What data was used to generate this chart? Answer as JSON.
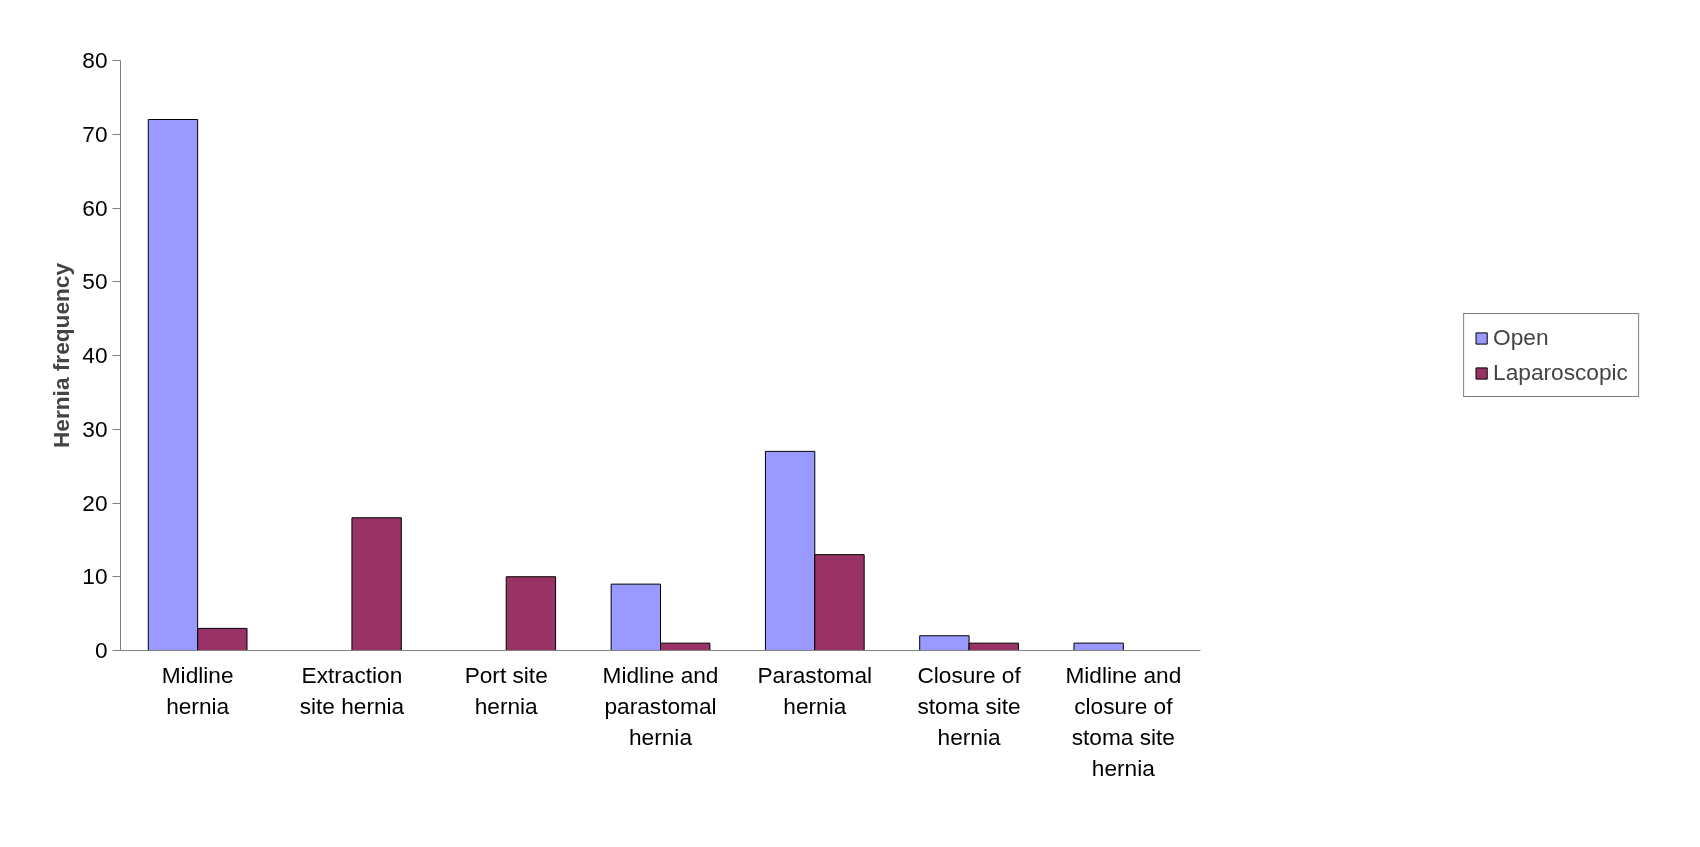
{
  "chart_data": {
    "type": "bar",
    "ylabel": "Hernia frequency",
    "categories": [
      "Midline hernia",
      "Extraction site hernia",
      "Port site hernia",
      "Midline and parastomal hernia",
      "Parastomal hernia",
      "Closure of stoma site hernia",
      "Midline and closure of stoma site hernia"
    ],
    "series": [
      {
        "name": "Open",
        "color": "#9999ff",
        "values": [
          72,
          0,
          0,
          9,
          27,
          2,
          1
        ]
      },
      {
        "name": "Laparoscopic",
        "color": "#993366",
        "values": [
          3,
          18,
          10,
          1,
          13,
          1,
          0
        ]
      }
    ],
    "ylim": [
      0,
      80
    ],
    "yticks": [
      0,
      10,
      20,
      30,
      40,
      50,
      60,
      70,
      80
    ],
    "grid": false,
    "legend": "right"
  }
}
